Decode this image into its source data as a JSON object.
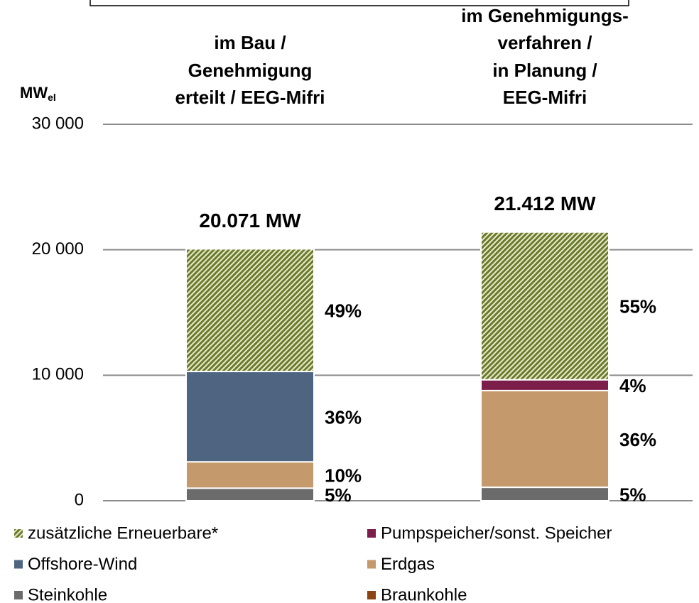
{
  "chart_data": {
    "type": "stacked_bar",
    "y_label": "MW",
    "y_label_sub": "el",
    "categories": [
      [
        "im Bau /",
        "Genehmigung",
        "erteilt / EEG-Mifri"
      ],
      [
        "im Genehmigungs-",
        "verfahren /",
        "in Planung /",
        "EEG-Mifri"
      ]
    ],
    "total_labels": [
      "20.071 MW",
      "21.412 MW"
    ],
    "ylim": [
      0,
      30000
    ],
    "yticks": [
      0,
      {
        "value": 10000,
        "label": "10 000"
      },
      {
        "value": 20000,
        "label": "20 000"
      },
      {
        "value": 30000,
        "label": "30 000"
      }
    ],
    "grid": true,
    "series": [
      {
        "name": "zusätzliche Erneuerbare*",
        "color": "#6b7a2a",
        "pattern": "hatch",
        "values": [
          9771,
          11772
        ],
        "share_labels": [
          "49%",
          "55%"
        ]
      },
      {
        "name": "Pumpspeicher/sonst. Speicher",
        "color": "#7b1f4a",
        "values": [
          0,
          860
        ],
        "share_labels": [
          null,
          "4%"
        ]
      },
      {
        "name": "Offshore-Wind",
        "color": "#4f6480",
        "values": [
          7200,
          0
        ],
        "share_labels": [
          "36%",
          null
        ]
      },
      {
        "name": "Erdgas",
        "color": "#c49a6c",
        "values": [
          2100,
          7710
        ],
        "share_labels": [
          "10%",
          "36%"
        ]
      },
      {
        "name": "Steinkohle",
        "color": "#6b6b6b",
        "values": [
          1000,
          1070
        ],
        "share_labels": [
          "5%",
          "5%"
        ]
      },
      {
        "name": "Braunkohle",
        "color": "#8b4513",
        "values": [
          0,
          0
        ],
        "share_labels": [
          null,
          null
        ]
      }
    ]
  }
}
